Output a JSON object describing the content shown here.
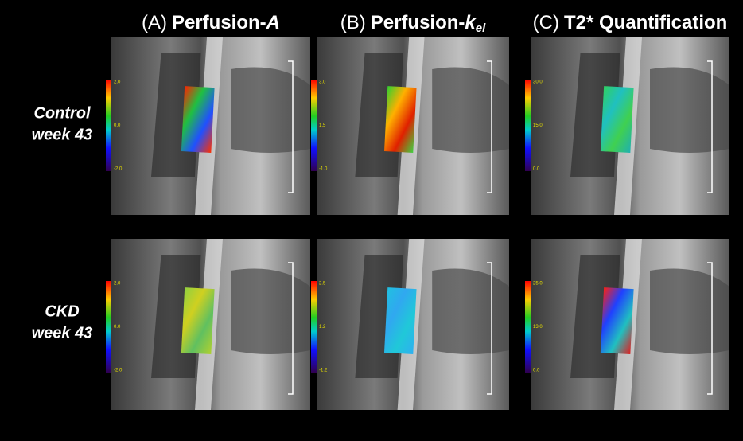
{
  "columns": [
    {
      "letter": "(A)",
      "title": "Perfusion-",
      "italic": "A"
    },
    {
      "letter": "(B)",
      "title": "Perfusion-",
      "italic": "k",
      "subscript": "el"
    },
    {
      "letter": "(C)",
      "title": "T2* Quantification"
    }
  ],
  "rows": [
    {
      "label": [
        "Control",
        "week 43"
      ],
      "colorbars": [
        [
          "2.0",
          "0.0",
          "-2.0"
        ],
        [
          "3.0",
          "1.5",
          "-1.0"
        ],
        [
          "30.0",
          "15.0",
          "0.0"
        ]
      ]
    },
    {
      "label": [
        "CKD",
        "week 43"
      ],
      "colorbars": [
        [
          "2.0",
          "0.0",
          "-2.0"
        ],
        [
          "2.5",
          "1.2",
          "-1.2"
        ],
        [
          "25.0",
          "13.0",
          "0.0"
        ]
      ]
    }
  ]
}
